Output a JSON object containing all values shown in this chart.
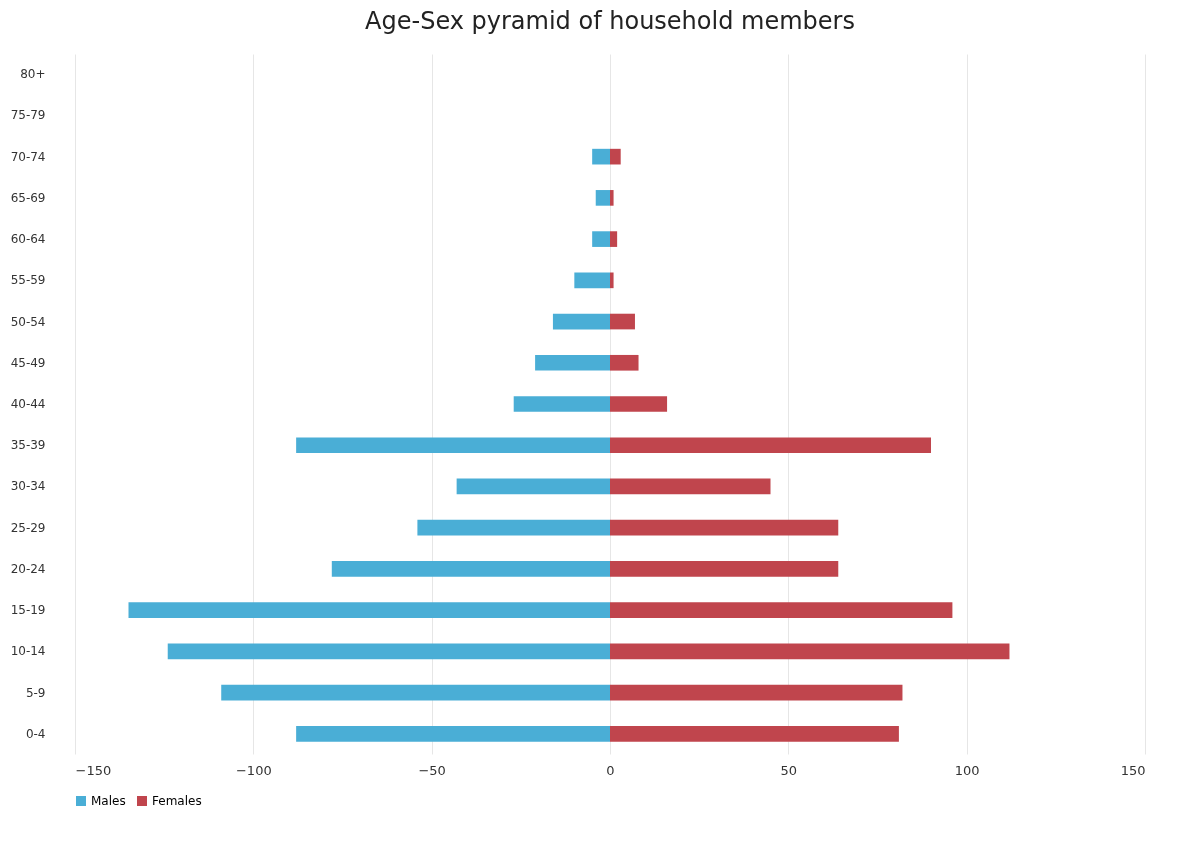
{
  "chart_data": {
    "type": "bar",
    "title": "Age-Sex pyramid of household members",
    "orientation": "horizontal",
    "stacked": true,
    "categories": [
      "80+",
      "75-79",
      "70-74",
      "65-69",
      "60-64",
      "55-59",
      "50-54",
      "45-49",
      "40-44",
      "35-39",
      "30-34",
      "25-29",
      "20-24",
      "15-19",
      "10-14",
      "5-9",
      "0-4"
    ],
    "series": [
      {
        "name": "Males",
        "color": "#4aaed6",
        "values": [
          0,
          0,
          -5,
          -4,
          -5,
          -10,
          -16,
          -21,
          -27,
          -88,
          -43,
          -54,
          -78,
          -135,
          -124,
          -109,
          -88
        ]
      },
      {
        "name": "Females",
        "color": "#c0454d",
        "values": [
          0,
          0,
          3,
          1,
          2,
          1,
          7,
          8,
          16,
          90,
          45,
          64,
          64,
          96,
          112,
          82,
          81
        ]
      }
    ],
    "xlim": [
      -150,
      150
    ],
    "xticks": [
      -150,
      -100,
      -50,
      0,
      50,
      100,
      150
    ],
    "grid": "x",
    "legend": "bottom"
  }
}
